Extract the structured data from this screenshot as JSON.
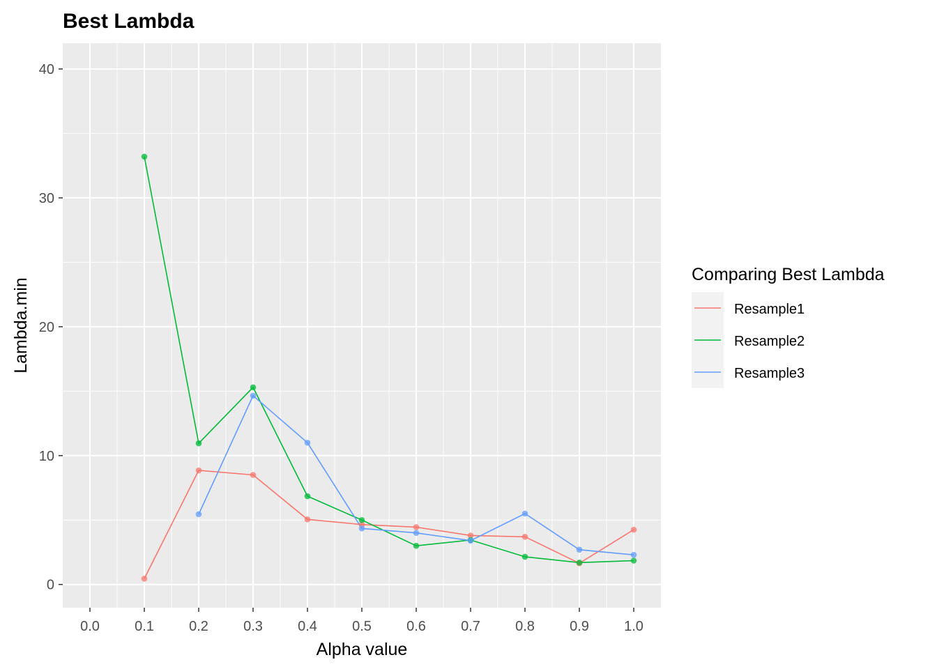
{
  "chart_data": {
    "type": "line",
    "title": "Best Lambda",
    "xlabel": "Alpha value",
    "ylabel": "Lambda.min",
    "x_ticks": [
      "0.0",
      "0.1",
      "0.2",
      "0.3",
      "0.4",
      "0.5",
      "0.6",
      "0.7",
      "0.8",
      "0.9",
      "1.0"
    ],
    "y_ticks": [
      "0",
      "10",
      "20",
      "30",
      "40"
    ],
    "xlim": [
      -0.05,
      1.05
    ],
    "ylim": [
      -1.8,
      42.0
    ],
    "grid": true,
    "legend": {
      "title": "Comparing Best Lambda",
      "position": "right"
    },
    "series": [
      {
        "name": "Resample1",
        "color": "#F8766D",
        "x": [
          0.1,
          0.2,
          0.3,
          0.4,
          0.5,
          0.6,
          0.7,
          0.8,
          0.9,
          1.0
        ],
        "y": [
          0.45,
          8.85,
          8.5,
          5.05,
          4.65,
          4.45,
          3.8,
          3.7,
          1.65,
          4.25
        ]
      },
      {
        "name": "Resample2",
        "color": "#00BA38",
        "x": [
          0.1,
          0.2,
          0.3,
          0.4,
          0.5,
          0.6,
          0.7,
          0.8,
          0.9,
          1.0
        ],
        "y": [
          33.2,
          10.95,
          15.3,
          6.85,
          5.0,
          3.0,
          3.45,
          2.15,
          1.7,
          1.85
        ]
      },
      {
        "name": "Resample3",
        "color": "#619CFF",
        "x": [
          0.2,
          0.3,
          0.4,
          0.5,
          0.6,
          0.7,
          0.8,
          0.9,
          1.0
        ],
        "y": [
          5.45,
          14.65,
          11.0,
          4.35,
          4.0,
          3.4,
          5.5,
          2.7,
          2.3
        ]
      }
    ]
  }
}
